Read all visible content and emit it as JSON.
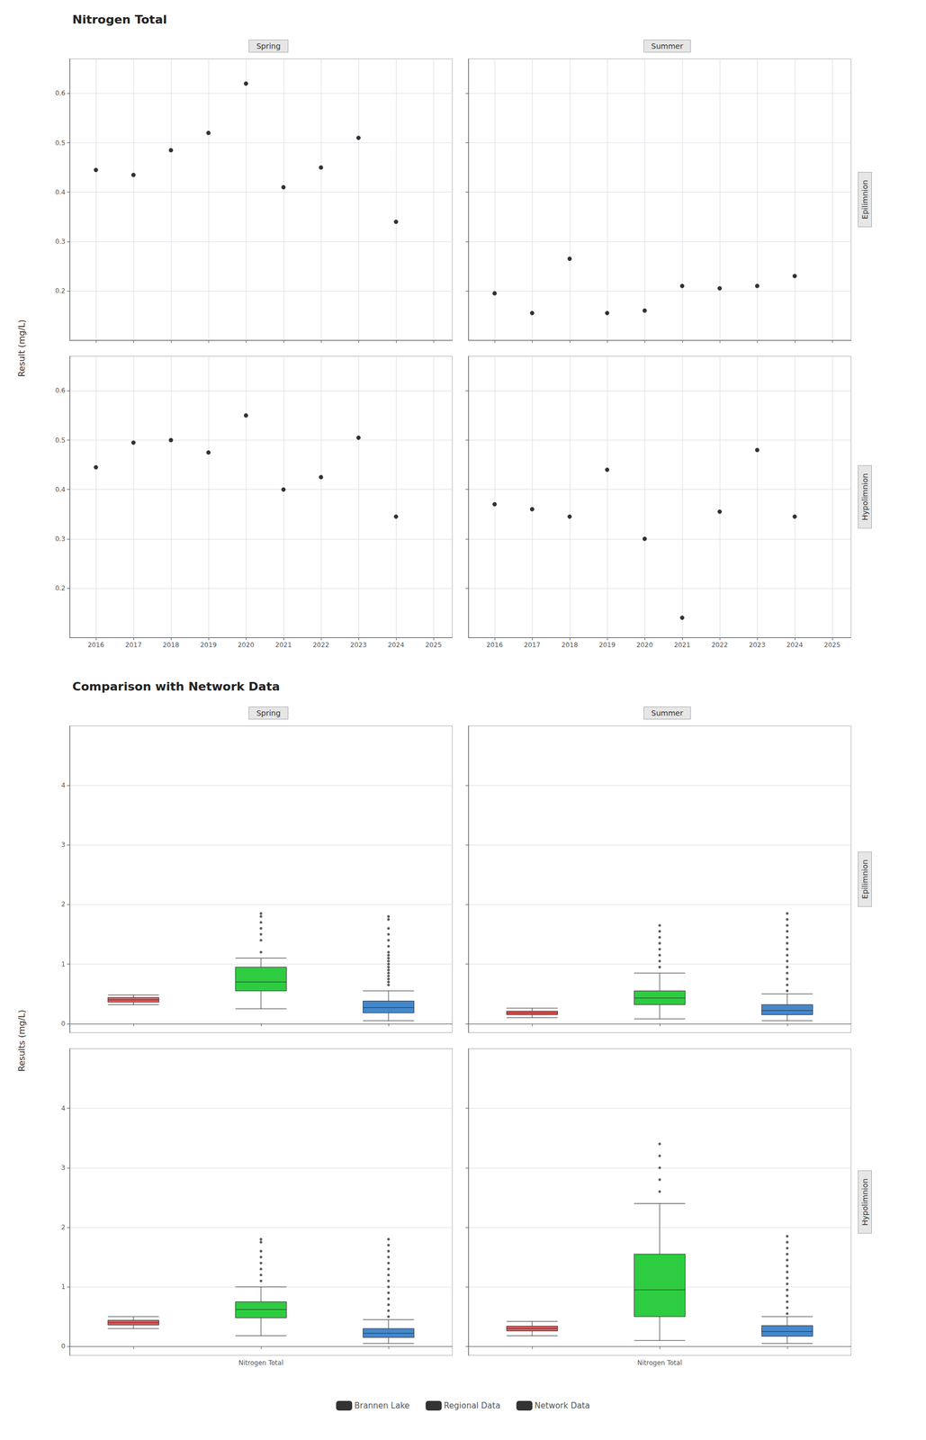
{
  "chart_data": [
    {
      "type": "scatter",
      "title": "Nitrogen Total",
      "ylabel": "Result (mg/L)",
      "grid": true,
      "panels": [
        {
          "title": "Spring",
          "x": [
            2016,
            2017,
            2018,
            2019,
            2020,
            2021,
            2022,
            2023,
            2024
          ],
          "values": [
            0.445,
            0.435,
            0.485,
            0.52,
            0.62,
            0.41,
            0.45,
            0.51,
            0.34
          ],
          "color": "black",
          "xlim": [
            2015.3,
            2025.5
          ],
          "xticks": [
            2016,
            2017,
            2018,
            2019,
            2020,
            2021,
            2022,
            2023,
            2024,
            2025
          ],
          "ylim": [
            0.1,
            0.67
          ],
          "yticks": [
            0.2,
            0.3,
            0.4,
            0.5,
            0.6
          ],
          "tick_labels": "y"
        },
        {
          "title": "Summer",
          "y2label": "Epilimnion",
          "x": [
            2016,
            2017,
            2018,
            2019,
            2020,
            2021,
            2022,
            2023,
            2024
          ],
          "values": [
            0.195,
            0.155,
            0.265,
            0.155,
            0.16,
            0.21,
            0.205,
            0.21,
            0.23
          ],
          "color": "black",
          "xlim": [
            2015.3,
            2025.5
          ],
          "xticks": [
            2016,
            2017,
            2018,
            2019,
            2020,
            2021,
            2022,
            2023,
            2024,
            2025
          ],
          "ylim": [
            0.1,
            0.67
          ],
          "yticks": [
            0.2,
            0.3,
            0.4,
            0.5,
            0.6
          ],
          "tick_labels": false
        },
        {
          "x": [
            2016,
            2017,
            2018,
            2019,
            2020,
            2021,
            2022,
            2023,
            2024
          ],
          "values": [
            0.445,
            0.495,
            0.5,
            0.475,
            0.55,
            0.4,
            0.425,
            0.505,
            0.345
          ],
          "color": "black",
          "xlim": [
            2015.3,
            2025.5
          ],
          "xticks": [
            2016,
            2017,
            2018,
            2019,
            2020,
            2021,
            2022,
            2023,
            2024,
            2025
          ],
          "ylim": [
            0.1,
            0.67
          ],
          "yticks": [
            0.2,
            0.3,
            0.4,
            0.5,
            0.6
          ],
          "tick_labels": true
        },
        {
          "y2label": "Hypolimnion",
          "x": [
            2016,
            2017,
            2018,
            2019,
            2020,
            2021,
            2022,
            2023,
            2024
          ],
          "values": [
            0.37,
            0.36,
            0.345,
            0.44,
            0.3,
            0.14,
            0.355,
            0.48,
            0.345
          ],
          "color": "black",
          "xlim": [
            2015.3,
            2025.5
          ],
          "xticks": [
            2016,
            2017,
            2018,
            2019,
            2020,
            2021,
            2022,
            2023,
            2024,
            2025
          ],
          "ylim": [
            0.1,
            0.67
          ],
          "yticks": [
            0.2,
            0.3,
            0.4,
            0.5,
            0.6
          ],
          "tick_labels": "x"
        }
      ]
    },
    {
      "type": "boxplot",
      "title": "Comparison with Network Data",
      "ylabel": "Results (mg/L)",
      "grid": true,
      "legend": "bottom",
      "panels": [
        {
          "title": "Spring",
          "categories": [
            null,
            "Nitrogen Total",
            null
          ],
          "ylim": [
            -0.15,
            5.0
          ],
          "yticks": [
            0,
            1,
            2,
            3,
            4
          ],
          "tick_labels": "y",
          "series": [
            {
              "name": "Brannen Lake",
              "color": "#e05c5c",
              "values": [
                {
                  "whislo": 0.32,
                  "q1": 0.36,
                  "median": 0.4,
                  "q3": 0.44,
                  "whishi": 0.48
                },
                null,
                null
              ]
            },
            {
              "name": "Regional Data",
              "color": "#2ecc40",
              "values": [
                null,
                {
                  "whislo": 0.25,
                  "q1": 0.55,
                  "median": 0.7,
                  "q3": 0.95,
                  "whishi": 1.1,
                  "fliers": [
                    1.2,
                    1.4,
                    1.5,
                    1.6,
                    1.7,
                    1.8,
                    1.85
                  ]
                },
                null
              ]
            },
            {
              "name": "Network Data",
              "color": "#4488cc",
              "values": [
                null,
                null,
                {
                  "whislo": 0.05,
                  "q1": 0.18,
                  "median": 0.27,
                  "q3": 0.38,
                  "whishi": 0.55,
                  "fliers": [
                    0.65,
                    0.7,
                    0.75,
                    0.8,
                    0.85,
                    0.9,
                    0.95,
                    1.0,
                    1.05,
                    1.1,
                    1.15,
                    1.2,
                    1.3,
                    1.4,
                    1.5,
                    1.6,
                    1.75,
                    1.8
                  ]
                }
              ]
            }
          ]
        },
        {
          "title": "Summer",
          "y2label": "Epilimnion",
          "categories": [
            null,
            "Nitrogen Total",
            null
          ],
          "ylim": [
            -0.15,
            5.0
          ],
          "yticks": [
            0,
            1,
            2,
            3,
            4
          ],
          "tick_labels": false,
          "series": [
            {
              "name": "Brannen Lake",
              "color": "#e05c5c",
              "values": [
                {
                  "whislo": 0.1,
                  "q1": 0.15,
                  "median": 0.18,
                  "q3": 0.21,
                  "whishi": 0.26
                },
                null,
                null
              ]
            },
            {
              "name": "Regional Data",
              "color": "#2ecc40",
              "values": [
                null,
                {
                  "whislo": 0.08,
                  "q1": 0.32,
                  "median": 0.43,
                  "q3": 0.55,
                  "whishi": 0.85,
                  "fliers": [
                    0.95,
                    1.05,
                    1.15,
                    1.25,
                    1.35,
                    1.45,
                    1.55,
                    1.65
                  ]
                },
                null
              ]
            },
            {
              "name": "Network Data",
              "color": "#4488cc",
              "values": [
                null,
                null,
                {
                  "whislo": 0.05,
                  "q1": 0.15,
                  "median": 0.22,
                  "q3": 0.32,
                  "whishi": 0.5,
                  "fliers": [
                    0.55,
                    0.65,
                    0.75,
                    0.85,
                    0.95,
                    1.05,
                    1.15,
                    1.25,
                    1.35,
                    1.45,
                    1.55,
                    1.65,
                    1.75,
                    1.85
                  ]
                }
              ]
            }
          ]
        },
        {
          "categories": [
            null,
            "Nitrogen Total",
            null
          ],
          "ylim": [
            -0.15,
            5.0
          ],
          "yticks": [
            0,
            1,
            2,
            3,
            4
          ],
          "tick_labels": true,
          "series": [
            {
              "name": "Brannen Lake",
              "color": "#e05c5c",
              "values": [
                {
                  "whislo": 0.3,
                  "q1": 0.36,
                  "median": 0.4,
                  "q3": 0.44,
                  "whishi": 0.5
                },
                null,
                null
              ]
            },
            {
              "name": "Regional Data",
              "color": "#2ecc40",
              "values": [
                null,
                {
                  "whislo": 0.18,
                  "q1": 0.48,
                  "median": 0.62,
                  "q3": 0.75,
                  "whishi": 1.0,
                  "fliers": [
                    1.1,
                    1.2,
                    1.3,
                    1.4,
                    1.5,
                    1.6,
                    1.75,
                    1.8
                  ]
                },
                null
              ]
            },
            {
              "name": "Network Data",
              "color": "#4488cc",
              "values": [
                null,
                null,
                {
                  "whislo": 0.05,
                  "q1": 0.15,
                  "median": 0.22,
                  "q3": 0.3,
                  "whishi": 0.45,
                  "fliers": [
                    0.5,
                    0.6,
                    0.7,
                    0.8,
                    0.9,
                    1.0,
                    1.1,
                    1.2,
                    1.3,
                    1.4,
                    1.5,
                    1.6,
                    1.7,
                    1.8
                  ]
                }
              ]
            }
          ]
        },
        {
          "y2label": "Hypolimnion",
          "categories": [
            null,
            "Nitrogen Total",
            null
          ],
          "ylim": [
            -0.15,
            5.0
          ],
          "yticks": [
            0,
            1,
            2,
            3,
            4
          ],
          "tick_labels": "x",
          "series": [
            {
              "name": "Brannen Lake",
              "color": "#e05c5c",
              "values": [
                {
                  "whislo": 0.18,
                  "q1": 0.26,
                  "median": 0.3,
                  "q3": 0.34,
                  "whishi": 0.42
                },
                null,
                null
              ]
            },
            {
              "name": "Regional Data",
              "color": "#2ecc40",
              "values": [
                null,
                {
                  "whislo": 0.1,
                  "q1": 0.5,
                  "median": 0.95,
                  "q3": 1.55,
                  "whishi": 2.4,
                  "fliers": [
                    2.6,
                    2.8,
                    3.0,
                    3.2,
                    3.4
                  ]
                },
                null
              ]
            },
            {
              "name": "Network Data",
              "color": "#4488cc",
              "values": [
                null,
                null,
                {
                  "whislo": 0.05,
                  "q1": 0.17,
                  "median": 0.25,
                  "q3": 0.35,
                  "whishi": 0.5,
                  "fliers": [
                    0.55,
                    0.65,
                    0.75,
                    0.85,
                    0.95,
                    1.05,
                    1.15,
                    1.25,
                    1.35,
                    1.45,
                    1.55,
                    1.65,
                    1.75,
                    1.85
                  ]
                }
              ]
            }
          ]
        }
      ]
    }
  ]
}
